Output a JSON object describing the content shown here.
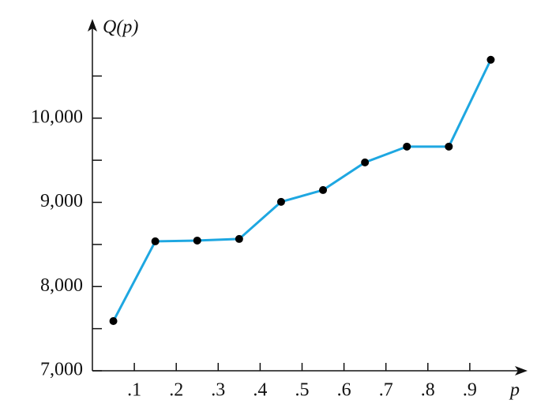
{
  "chart_data": {
    "type": "line",
    "x_label": "p",
    "y_label": "Q(p)",
    "x": [
      0.05,
      0.15,
      0.25,
      0.35,
      0.45,
      0.55,
      0.65,
      0.75,
      0.85,
      0.95
    ],
    "series": [
      {
        "color": "#1ea7e1",
        "values": [
          7590,
          8537,
          8546,
          8565,
          9006,
          9146,
          9474,
          9662,
          9662,
          10693
        ]
      }
    ],
    "xlim": [
      0,
      1
    ],
    "xticks": [
      {
        "value": 0.1,
        "label": ".1"
      },
      {
        "value": 0.2,
        "label": ".2"
      },
      {
        "value": 0.3,
        "label": ".3"
      },
      {
        "value": 0.4,
        "label": ".4"
      },
      {
        "value": 0.5,
        "label": ".5"
      },
      {
        "value": 0.6,
        "label": ".6"
      },
      {
        "value": 0.7,
        "label": ".7"
      },
      {
        "value": 0.8,
        "label": ".8"
      },
      {
        "value": 0.9,
        "label": ".9"
      }
    ],
    "ylim": [
      7000,
      11000
    ],
    "yticks": [
      {
        "value": 7000,
        "label": "7,000"
      },
      {
        "value": 8000,
        "label": "8,000"
      },
      {
        "value": 9000,
        "label": "9,000"
      },
      {
        "value": 10000,
        "label": "10,000"
      }
    ],
    "yminorticks": [
      7500,
      8500,
      9500,
      10500
    ],
    "marker_color": "#000000"
  }
}
